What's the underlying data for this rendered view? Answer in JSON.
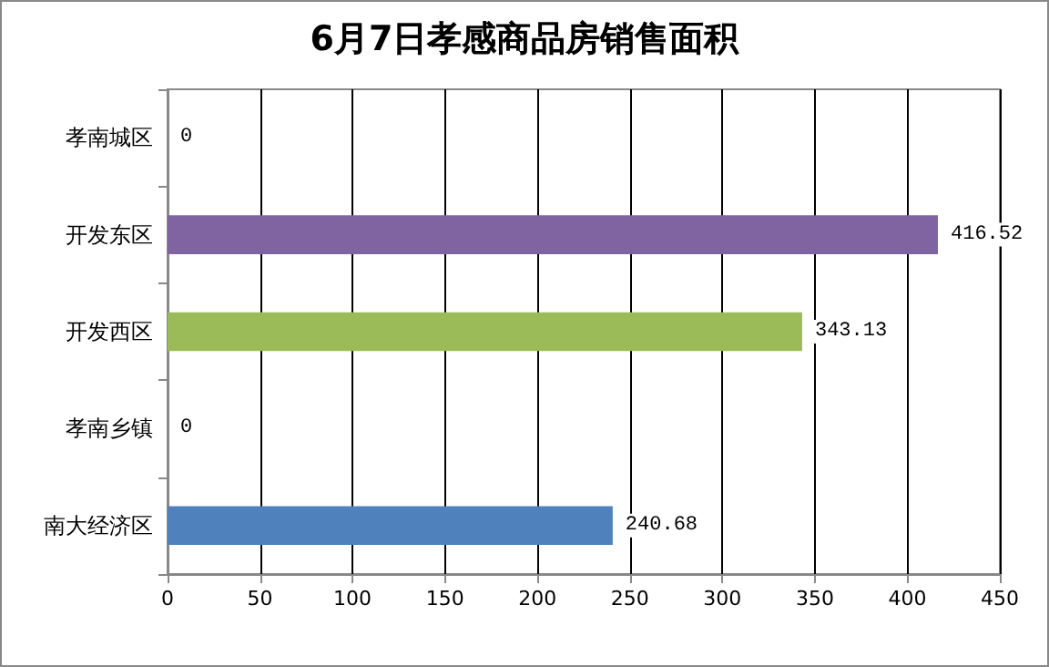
{
  "chart_data": {
    "type": "bar",
    "orientation": "horizontal",
    "title": "6月7日孝感商品房销售面积",
    "categories": [
      "孝南城区",
      "开发东区",
      "开发西区",
      "孝南乡镇",
      "南大经济区"
    ],
    "values": [
      0,
      416.52,
      343.13,
      0,
      240.68
    ],
    "colors": [
      "#4bacc6",
      "#8064a2",
      "#9bbb59",
      "#c0504d",
      "#4f81bd"
    ],
    "xlim": [
      0,
      450
    ],
    "xticks": [
      0,
      50,
      100,
      150,
      200,
      250,
      300,
      350,
      400,
      450
    ],
    "grid": "x",
    "data_labels": true
  }
}
